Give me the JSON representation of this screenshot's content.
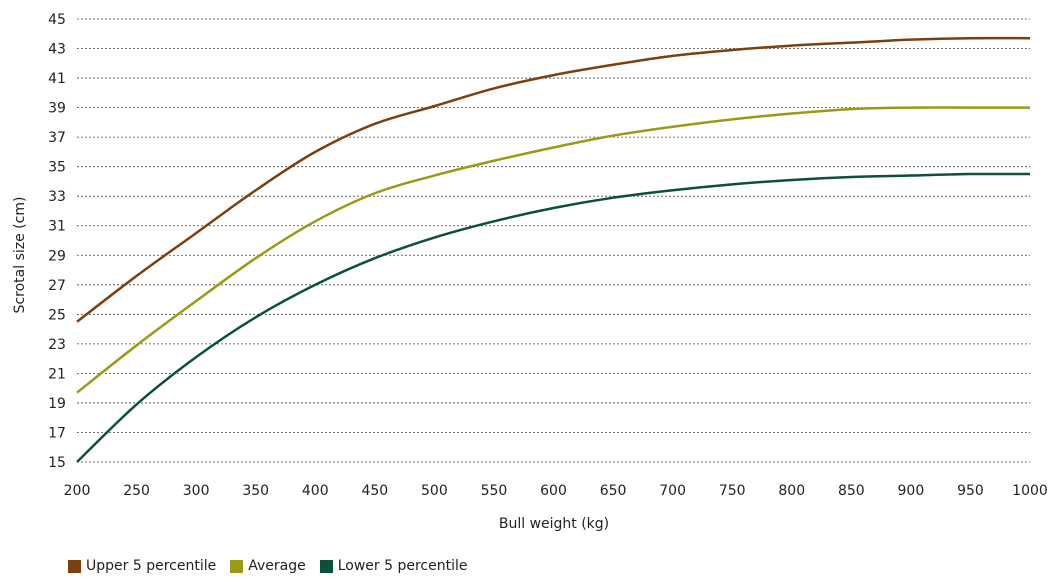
{
  "chart_data": {
    "type": "line",
    "xlabel": "Bull weight (kg)",
    "ylabel": "Scrotal size (cm)",
    "xlim": [
      200,
      1000
    ],
    "ylim": [
      15,
      45
    ],
    "x_ticks": [
      "200",
      "250",
      "300",
      "350",
      "400",
      "450",
      "500",
      "550",
      "600",
      "650",
      "700",
      "750",
      "800",
      "850",
      "900",
      "950",
      "1000"
    ],
    "y_ticks": [
      "15",
      "17",
      "19",
      "21",
      "23",
      "25",
      "27",
      "29",
      "31",
      "33",
      "35",
      "37",
      "39",
      "41",
      "43",
      "45"
    ],
    "grid": "horizontal dotted",
    "legend_position": "bottom-left",
    "x": [
      200,
      250,
      300,
      350,
      400,
      450,
      500,
      550,
      600,
      650,
      700,
      750,
      800,
      850,
      900,
      950,
      1000
    ],
    "series": [
      {
        "name": "Upper 5 percentile",
        "color": "#7b3f10",
        "values": [
          24.5,
          27.6,
          30.5,
          33.4,
          36.0,
          37.9,
          39.1,
          40.3,
          41.2,
          41.9,
          42.5,
          42.9,
          43.2,
          43.4,
          43.6,
          43.7,
          43.7
        ]
      },
      {
        "name": "Average",
        "color": "#999a16",
        "values": [
          19.7,
          22.9,
          25.9,
          28.8,
          31.3,
          33.2,
          34.4,
          35.4,
          36.3,
          37.1,
          37.7,
          38.2,
          38.6,
          38.9,
          39.0,
          39.0,
          39.0
        ]
      },
      {
        "name": "Lower 5 percentile",
        "color": "#0c5137",
        "values": [
          15.0,
          18.9,
          22.1,
          24.8,
          27.0,
          28.8,
          30.2,
          31.3,
          32.2,
          32.9,
          33.4,
          33.8,
          34.1,
          34.3,
          34.4,
          34.5,
          34.5
        ]
      }
    ]
  }
}
